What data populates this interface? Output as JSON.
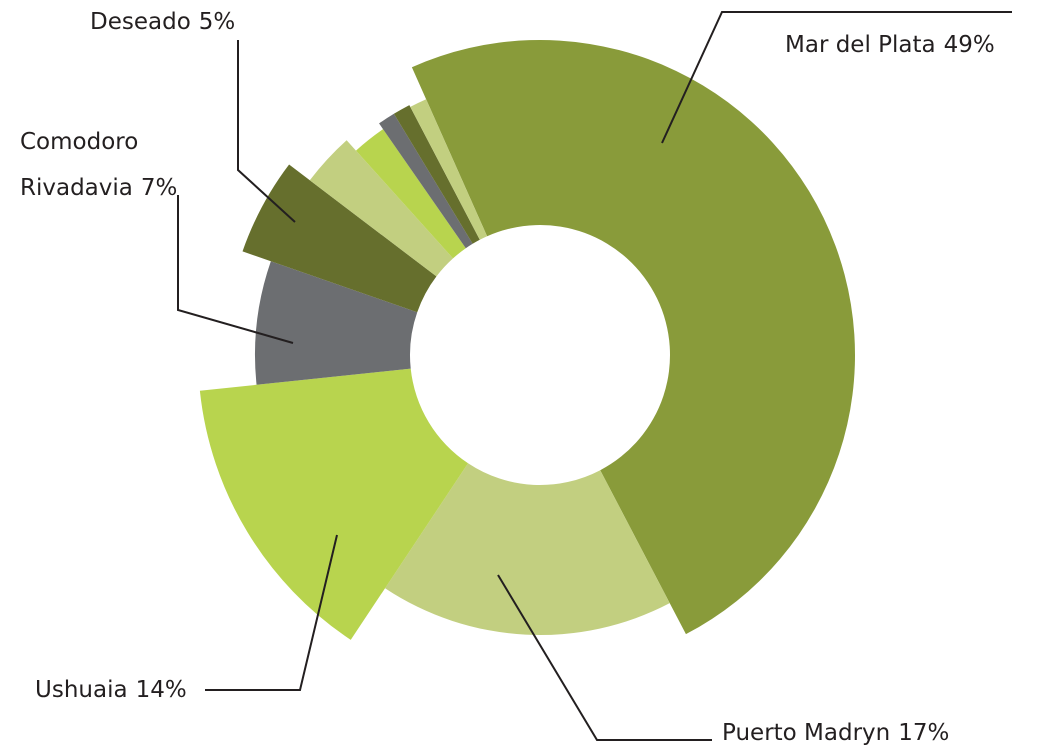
{
  "chart_data": {
    "type": "donut",
    "categories": [
      "Mar del Plata",
      "Puerto Madryn",
      "Ushuaia",
      "Comodoro Rivadavia",
      "Deseado",
      null,
      null,
      null,
      null,
      null
    ],
    "values": [
      49,
      17,
      14,
      7,
      5,
      3,
      2,
      1,
      1,
      1
    ],
    "value_labels": [
      "49%",
      "17%",
      "14%",
      "7%",
      "5%",
      null,
      null,
      null,
      null,
      null
    ],
    "colors": [
      "#899b3a",
      "#c2cf80",
      "#b8d44e",
      "#6c6e71",
      "#666f2d",
      "#c2cf80",
      "#b8d44e",
      "#6c6e71",
      "#666f2d",
      "#c2cf80"
    ]
  }
}
